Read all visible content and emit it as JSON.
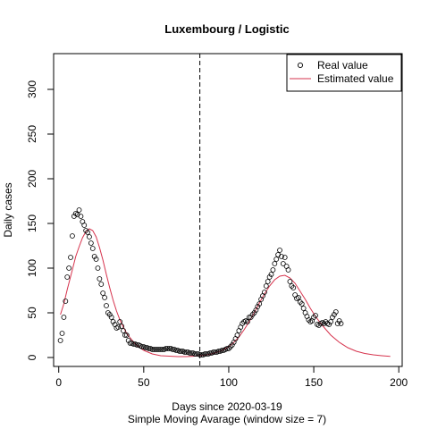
{
  "chart_data": {
    "type": "scatter",
    "title": "Luxembourg / Logistic",
    "xlabel": "Days since 2020-03-19",
    "xlabel_note": "Simple Moving Avarage (window size = 7)",
    "ylabel": "Daily cases",
    "xlim": [
      -3,
      202
    ],
    "ylim": [
      -10,
      340
    ],
    "xticks": [
      0,
      50,
      100,
      150,
      200
    ],
    "yticks": [
      0,
      50,
      100,
      150,
      200,
      250,
      300
    ],
    "vline_x": 83,
    "legend_position": "top-right",
    "grid": false,
    "series": [
      {
        "name": "Real value",
        "style": "points",
        "color": "#000000",
        "x": [
          1,
          2,
          3,
          4,
          5,
          6,
          7,
          8,
          9,
          10,
          11,
          12,
          13,
          14,
          15,
          16,
          17,
          18,
          19,
          20,
          21,
          22,
          23,
          24,
          25,
          26,
          27,
          28,
          29,
          30,
          31,
          32,
          33,
          34,
          35,
          36,
          37,
          38,
          39,
          40,
          41,
          42,
          43,
          44,
          45,
          46,
          47,
          48,
          49,
          50,
          51,
          52,
          53,
          54,
          55,
          56,
          57,
          58,
          59,
          60,
          61,
          62,
          63,
          64,
          65,
          66,
          67,
          68,
          69,
          70,
          71,
          72,
          73,
          74,
          75,
          76,
          77,
          78,
          79,
          80,
          81,
          82,
          83,
          84,
          85,
          86,
          87,
          88,
          89,
          90,
          91,
          92,
          93,
          94,
          95,
          96,
          97,
          98,
          99,
          100,
          101,
          102,
          103,
          104,
          105,
          106,
          107,
          108,
          109,
          110,
          111,
          112,
          113,
          114,
          115,
          116,
          117,
          118,
          119,
          120,
          121,
          122,
          123,
          124,
          125,
          126,
          127,
          128,
          129,
          130,
          131,
          132,
          133,
          134,
          135,
          136,
          137,
          138,
          139,
          140,
          141,
          142,
          143,
          144,
          145,
          146,
          147,
          148,
          149,
          150,
          151,
          152,
          153,
          154,
          155,
          156,
          157,
          158,
          159,
          160,
          161,
          162,
          163,
          164,
          165,
          166
        ],
        "y": [
          19,
          27,
          45,
          63,
          90,
          100,
          112,
          136,
          158,
          161,
          160,
          165,
          158,
          152,
          148,
          142,
          140,
          135,
          128,
          122,
          113,
          110,
          100,
          88,
          82,
          72,
          67,
          58,
          50,
          48,
          45,
          40,
          37,
          33,
          34,
          40,
          35,
          30,
          25,
          25,
          19,
          16,
          16,
          15,
          15,
          14,
          14,
          13,
          12,
          12,
          11,
          11,
          10,
          10,
          9,
          9,
          9,
          9,
          9,
          9,
          9,
          9,
          10,
          10,
          10,
          10,
          9,
          9,
          8,
          8,
          7,
          7,
          7,
          6,
          6,
          6,
          5,
          5,
          5,
          4,
          4,
          4,
          3,
          3,
          3,
          4,
          4,
          4,
          5,
          5,
          6,
          6,
          6,
          7,
          7,
          8,
          8,
          9,
          10,
          10,
          12,
          14,
          17,
          21,
          25,
          30,
          34,
          38,
          40,
          41,
          40,
          45,
          45,
          48,
          50,
          53,
          57,
          60,
          65,
          69,
          73,
          80,
          85,
          90,
          93,
          98,
          105,
          110,
          115,
          120,
          113,
          105,
          112,
          102,
          98,
          85,
          80,
          78,
          70,
          66,
          67,
          62,
          60,
          55,
          50,
          46,
          42,
          40,
          41,
          45,
          47,
          37,
          36,
          38,
          39,
          38,
          40,
          38,
          37,
          40,
          45,
          48,
          51,
          38,
          41,
          38
        ],
        "marker": "open-circle"
      },
      {
        "name": "Estimated value",
        "style": "line",
        "color": "#d6334d",
        "x": [
          1,
          3,
          5,
          8,
          10,
          12,
          14,
          16,
          18,
          20,
          22,
          24,
          26,
          28,
          30,
          32,
          34,
          36,
          38,
          40,
          42,
          45,
          50,
          55,
          60,
          65,
          70,
          75,
          80,
          85,
          90,
          95,
          100,
          103,
          106,
          109,
          112,
          115,
          118,
          121,
          124,
          127,
          130,
          133,
          136,
          139,
          142,
          145,
          148,
          151,
          155,
          160,
          165,
          170,
          175,
          180,
          185,
          190,
          195
        ],
        "y": [
          48,
          60,
          76,
          98,
          113,
          124,
          134,
          141,
          144,
          142,
          135,
          123,
          109,
          93,
          78,
          64,
          52,
          42,
          34,
          27,
          22,
          15,
          8,
          4,
          2,
          1.5,
          1,
          1,
          1.5,
          2.5,
          4,
          7,
          12,
          17,
          23,
          31,
          40,
          50,
          61,
          71,
          80,
          87,
          91,
          92,
          89,
          83,
          74,
          65,
          55,
          46,
          36,
          25,
          17,
          11,
          7,
          4.5,
          3,
          2,
          1.2
        ]
      }
    ]
  }
}
